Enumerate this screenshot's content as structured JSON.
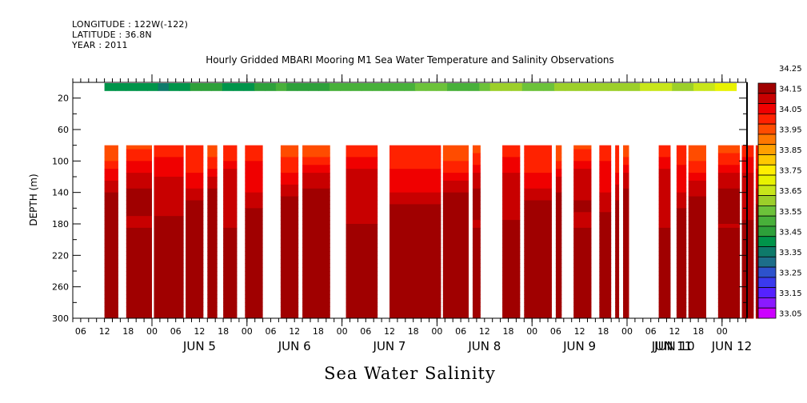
{
  "header": {
    "longitude": "LONGITUDE : 122W(-122)",
    "latitude": "LATITUDE : 36.8N",
    "year": "YEAR : 2011"
  },
  "chart_data": {
    "type": "heatmap",
    "title": "Hourly Gridded MBARI Mooring M1 Sea Water Temperature and Salinity Observations",
    "xlabel": "Sea Water Salinity",
    "ylabel": "DEPTH (m)",
    "y_axis": {
      "range": [
        0,
        300
      ],
      "inverted": true,
      "ticks": [
        20,
        60,
        100,
        140,
        180,
        220,
        260,
        300
      ],
      "minor_ticks": [
        40,
        80,
        120,
        160,
        200,
        240,
        280
      ]
    },
    "x_axis": {
      "range_start": "2011-06-04T04:00",
      "range_end": "2011-06-11T06:00",
      "hour_tick_labels": [
        "06",
        "12",
        "18",
        "00",
        "06",
        "12",
        "18",
        "00",
        "06",
        "12",
        "18",
        "00",
        "06",
        "12",
        "18",
        "00",
        "06",
        "12",
        "18",
        "00",
        "06",
        "12",
        "18",
        "00",
        "06",
        "12",
        "18",
        "00"
      ],
      "day_labels": [
        "JUN  5",
        "JUN  6",
        "JUN  7",
        "JUN  8",
        "JUN  9",
        "JUN 10",
        "JUN 11",
        "JUN 12"
      ]
    },
    "colorbar": {
      "levels": [
        "33.05",
        "33.15",
        "33.25",
        "33.35",
        "33.45",
        "33.55",
        "33.65",
        "33.75",
        "33.85",
        "33.95",
        "34.05",
        "34.15",
        "34.25"
      ],
      "colors": [
        "#cc00ff",
        "#8a1aff",
        "#5522ff",
        "#3a3aee",
        "#2d52cc",
        "#1d6e8a",
        "#0e7a6a",
        "#00944a",
        "#2ea03a",
        "#48b03a",
        "#6cc23a",
        "#9ccf2a",
        "#c8e61a",
        "#e8f200",
        "#ffee00",
        "#ffc800",
        "#ffa000",
        "#ff7800",
        "#ff4c00",
        "#ff2200",
        "#f00000",
        "#c80000",
        "#a00000"
      ]
    },
    "surface_layer": {
      "depth_range_m": [
        0,
        10
      ],
      "salinity_range": [
        33.35,
        33.65
      ],
      "description": "Shallow sensor row, ~33.35-33.45 early, increasing to ~33.55-33.65 by Jun 11; small gap near end"
    },
    "profile_depth_range_m": [
      80,
      300
    ],
    "data_segments_hours_from_start": [
      [
        8,
        11.5
      ],
      [
        13.5,
        20
      ],
      [
        20.5,
        28
      ],
      [
        28.5,
        33
      ],
      [
        34,
        36.5
      ],
      [
        38,
        41.5
      ],
      [
        43.5,
        48
      ],
      [
        52.5,
        57
      ],
      [
        58,
        65
      ],
      [
        69,
        77
      ],
      [
        80,
        93
      ],
      [
        93.5,
        100
      ],
      [
        101,
        103
      ],
      [
        108.5,
        113
      ],
      [
        114,
        121
      ],
      [
        122,
        123.5
      ],
      [
        126.5,
        131
      ],
      [
        133,
        136
      ],
      [
        137,
        138
      ],
      [
        139,
        140.5
      ],
      [
        148,
        151
      ],
      [
        152.5,
        155
      ],
      [
        155.5,
        160
      ],
      [
        163,
        168.5
      ],
      [
        169,
        172
      ],
      [
        172.5,
        176
      ]
    ],
    "segments_note": "Approximate; white gaps = missing data",
    "depth_profile_typical": [
      {
        "depth": 80,
        "salinity": 33.95
      },
      {
        "depth": 100,
        "salinity": 33.98
      },
      {
        "depth": 120,
        "salinity": 34.05
      },
      {
        "depth": 140,
        "salinity": 34.08
      },
      {
        "depth": 160,
        "salinity": 34.12
      },
      {
        "depth": 180,
        "salinity": 34.12
      },
      {
        "depth": 200,
        "salinity": 34.15
      },
      {
        "depth": 220,
        "salinity": 34.18
      },
      {
        "depth": 240,
        "salinity": 34.22
      },
      {
        "depth": 255,
        "salinity": 34.26
      },
      {
        "depth": 270,
        "salinity": 34.22
      },
      {
        "depth": 290,
        "salinity": 34.18
      },
      {
        "depth": 300,
        "salinity": 34.16
      }
    ]
  }
}
